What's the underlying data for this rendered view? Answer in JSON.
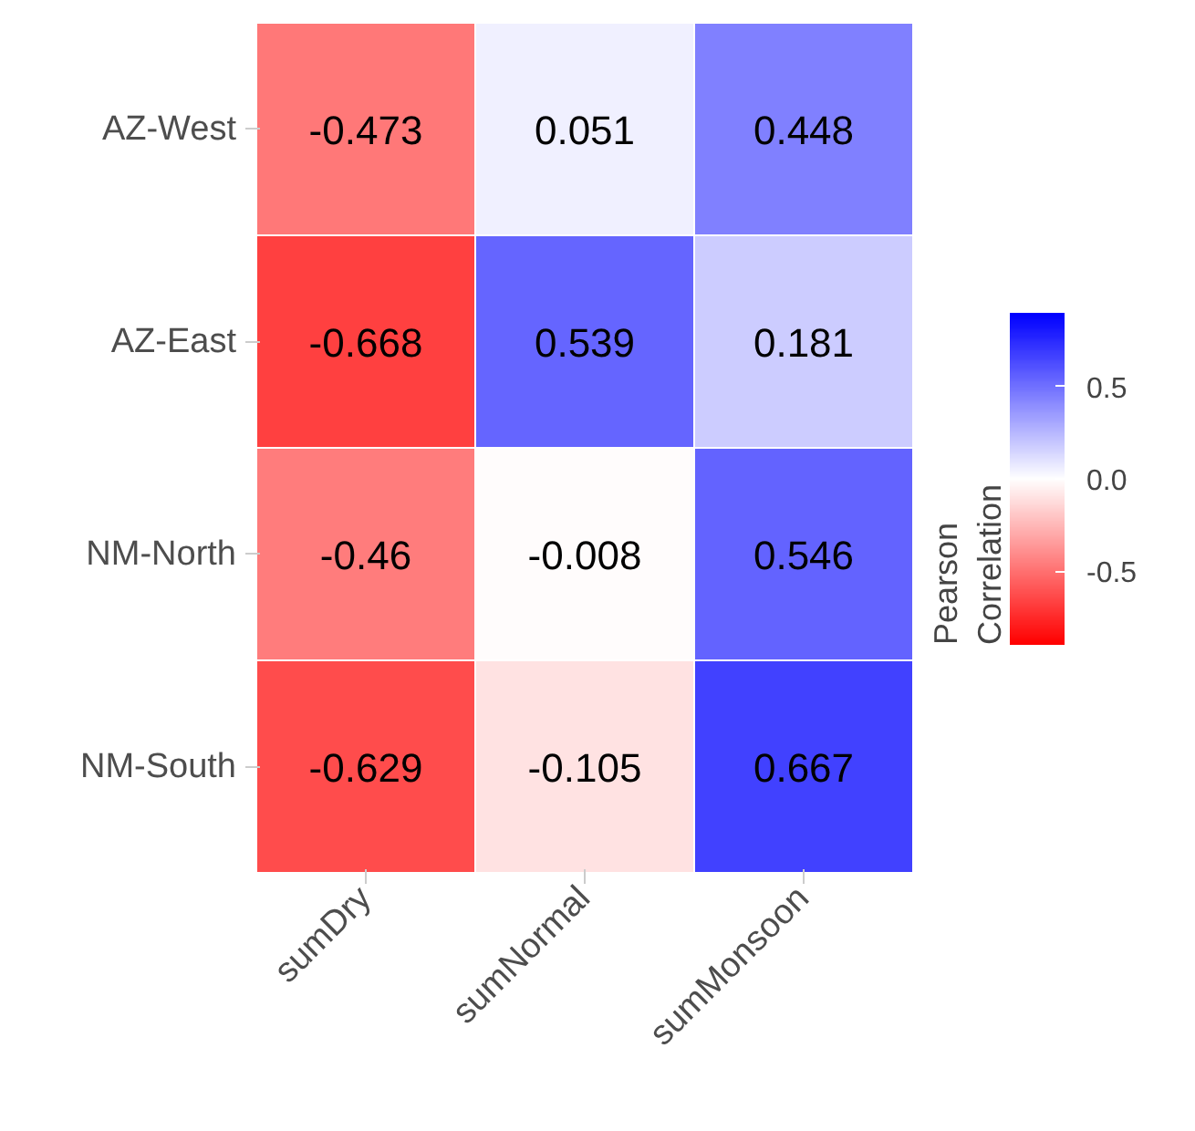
{
  "chart_data": {
    "type": "heatmap",
    "categories": [
      "sumDry",
      "sumNormal",
      "sumMonsoon"
    ],
    "y_categories": [
      "AZ-West",
      "AZ-East",
      "NM-North",
      "NM-South"
    ],
    "cells": [
      [
        -0.473,
        0.051,
        0.448
      ],
      [
        -0.668,
        0.539,
        0.181
      ],
      [
        -0.46,
        -0.008,
        0.546
      ],
      [
        -0.629,
        -0.105,
        0.667
      ]
    ],
    "data_labels": true,
    "clabel": "Pearson Correlation",
    "clim": [
      -0.9,
      0.9
    ],
    "cticks": [
      {
        "value": -0.5,
        "label": "-0.5"
      },
      {
        "value": 0,
        "label": "0.0"
      },
      {
        "value": 0.5,
        "label": "0.5"
      }
    ]
  }
}
